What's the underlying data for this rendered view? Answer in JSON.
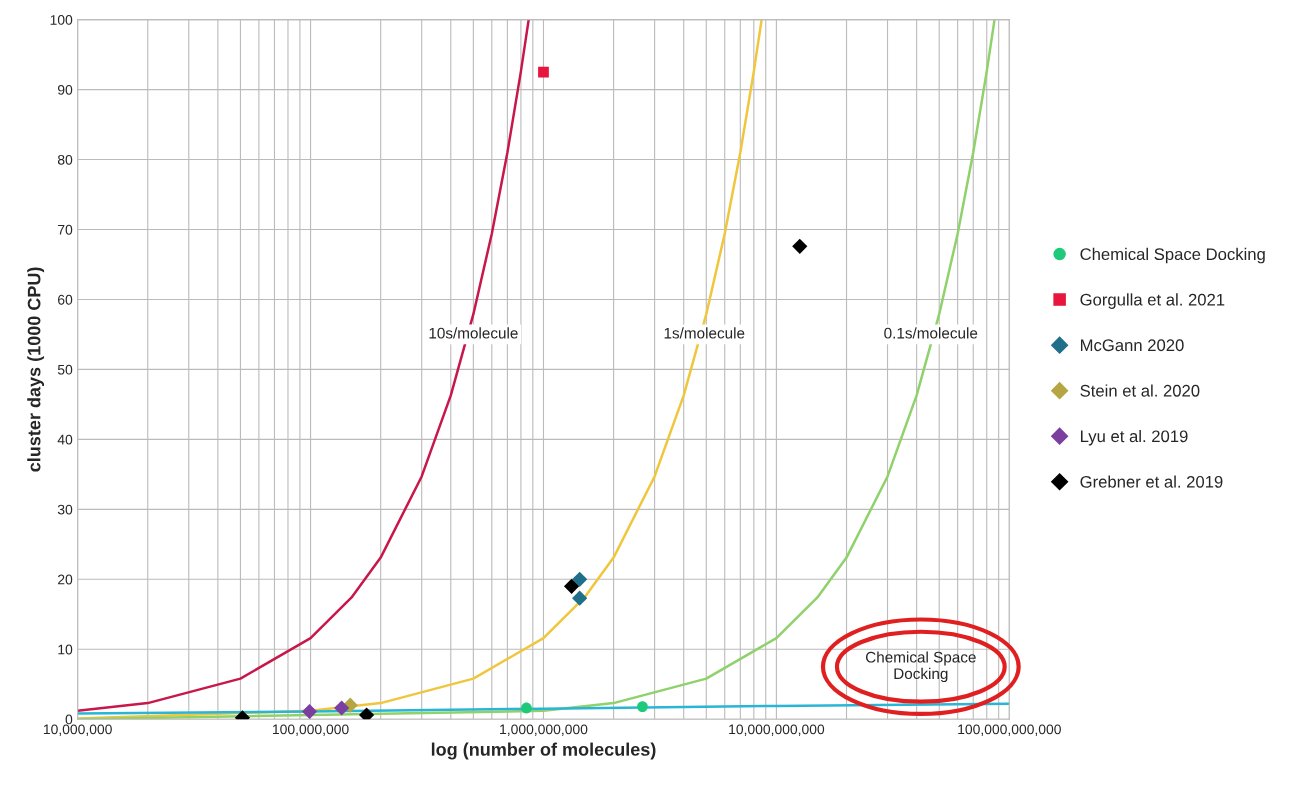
{
  "chart_data": {
    "type": "scatter",
    "xlabel": "log (number of molecules)",
    "ylabel": "cluster days (1000 CPU)",
    "log": "x",
    "xlim": [
      10000000,
      100000000000
    ],
    "ylim": [
      0,
      100
    ],
    "xticks": [
      {
        "value": 10000000,
        "label": "10,000,000"
      },
      {
        "value": 100000000,
        "label": "100,000,000"
      },
      {
        "value": 1000000000,
        "label": "1,000,000,000"
      },
      {
        "value": 10000000000,
        "label": "10,000,000,000"
      },
      {
        "value": 100000000000,
        "label": "100,000,000,000"
      }
    ],
    "yticks": [
      0,
      10,
      20,
      30,
      40,
      50,
      60,
      70,
      80,
      90,
      100
    ],
    "grid": true,
    "legend": "right",
    "series": [
      {
        "type": "line",
        "color": "#c8174a",
        "x": [
          10000000,
          20000000,
          50000000,
          100000000,
          150000000,
          200000000,
          300000000,
          400000000,
          500000000,
          600000000,
          700000000,
          800000000,
          864000000
        ],
        "values": [
          1.2,
          2.3,
          5.8,
          11.6,
          17.4,
          23.1,
          34.7,
          46.3,
          57.9,
          69.4,
          81.0,
          92.6,
          100
        ]
      },
      {
        "type": "line",
        "color": "#f0c63c",
        "x": [
          10000000,
          100000000,
          200000000,
          500000000,
          1000000000,
          1500000000,
          2000000000,
          3000000000,
          4000000000,
          5000000000,
          6000000000,
          7000000000,
          8000000000,
          8640000000
        ],
        "values": [
          0.1,
          1.2,
          2.3,
          5.8,
          11.6,
          17.4,
          23.1,
          34.7,
          46.3,
          57.9,
          69.4,
          81.0,
          92.6,
          100
        ]
      },
      {
        "type": "line",
        "color": "#8fd16a",
        "x": [
          10000000,
          1000000000,
          2000000000,
          5000000000,
          10000000000,
          15000000000,
          20000000000,
          30000000000,
          40000000000,
          50000000000,
          60000000000,
          70000000000,
          80000000000,
          86400000000
        ],
        "values": [
          0.0,
          1.2,
          2.3,
          5.8,
          11.6,
          17.4,
          23.1,
          34.7,
          46.3,
          57.9,
          69.4,
          81.0,
          92.6,
          100
        ]
      },
      {
        "type": "line",
        "color": "#29b6d6",
        "x": [
          10000000,
          100000000,
          1000000000,
          10000000000,
          100000000000
        ],
        "values": [
          0.8,
          1.1,
          1.5,
          1.9,
          2.2
        ]
      },
      {
        "name": "Chemical Space Docking",
        "color": "#1fc97a",
        "marker": "circle",
        "x": [
          845000000,
          2660000000
        ],
        "values": [
          1.6,
          1.8
        ]
      },
      {
        "name": "Gorgulla et al. 2021",
        "color": "#e8163c",
        "marker": "square",
        "x": [
          1000000000
        ],
        "values": [
          92.5
        ]
      },
      {
        "name": "McGann 2020",
        "color": "#1f6f8b",
        "marker": "diamond",
        "x": [
          1430000000,
          1430000000
        ],
        "values": [
          20.0,
          17.3
        ]
      },
      {
        "name": "Stein et al. 2020",
        "color": "#b5a642",
        "marker": "diamond",
        "x": [
          148000000
        ],
        "values": [
          2.0
        ]
      },
      {
        "name": "Lyu et al. 2019",
        "color": "#7b3fa0",
        "marker": "diamond",
        "x": [
          99000000,
          136000000
        ],
        "values": [
          1.1,
          1.6
        ]
      },
      {
        "name": "Grebner et al. 2019",
        "color": "#000000",
        "marker": "diamond",
        "x": [
          51000000,
          174000000,
          1320000000,
          12600000000
        ],
        "values": [
          0.2,
          0.6,
          19.0,
          67.6
        ]
      }
    ],
    "annotations": [
      {
        "text": "10s/molecule",
        "x": 500000000,
        "y": 55
      },
      {
        "text": "1s/molecule",
        "x": 4900000000,
        "y": 55
      },
      {
        "text": "0.1s/molecule",
        "x": 46000000000,
        "y": 55
      },
      "Chemical Space\nDocking"
    ]
  }
}
